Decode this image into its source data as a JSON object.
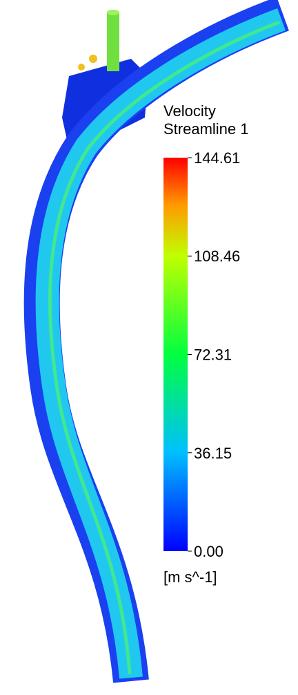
{
  "legend": {
    "title": "Velocity",
    "subtitle": "Streamline 1",
    "ticks": [
      144.61,
      108.46,
      72.31,
      36.15,
      {
        "value": 0,
        "label": "0.00"
      }
    ],
    "unit": "[m s^-1]"
  }
}
